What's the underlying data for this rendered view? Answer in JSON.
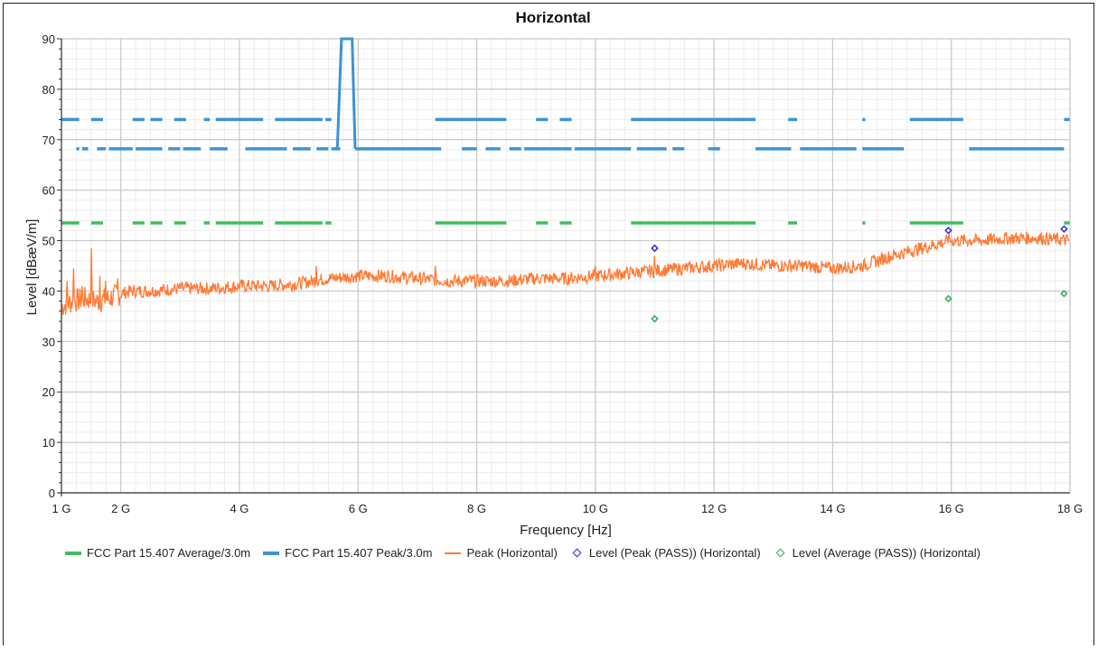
{
  "chart_data": {
    "type": "line",
    "title": "Horizontal",
    "xlabel": "Frequency [Hz]",
    "ylabel": "Level [dBæV/m]",
    "xlim": [
      1,
      18
    ],
    "ylim": [
      0,
      90
    ],
    "x_ticks": [
      {
        "v": 1,
        "label": "1 G"
      },
      {
        "v": 2,
        "label": "2 G"
      },
      {
        "v": 4,
        "label": "4 G"
      },
      {
        "v": 6,
        "label": "6 G"
      },
      {
        "v": 8,
        "label": "8 G"
      },
      {
        "v": 10,
        "label": "10 G"
      },
      {
        "v": 12,
        "label": "12 G"
      },
      {
        "v": 14,
        "label": "14 G"
      },
      {
        "v": 16,
        "label": "16 G"
      },
      {
        "v": 18,
        "label": "18 G"
      }
    ],
    "y_ticks": [
      0,
      10,
      20,
      30,
      40,
      50,
      60,
      70,
      80,
      90
    ],
    "grid": true,
    "legend_position": "bottom",
    "series": [
      {
        "name": "FCC Part 15.407 Average/3.0m",
        "style": "segments",
        "color": "#3dbf5a",
        "level": 53.5,
        "segments": [
          [
            1.0,
            1.3
          ],
          [
            1.5,
            1.7
          ],
          [
            2.2,
            2.4
          ],
          [
            2.5,
            2.7
          ],
          [
            2.9,
            3.1
          ],
          [
            3.4,
            3.5
          ],
          [
            3.6,
            4.4
          ],
          [
            4.6,
            5.4
          ],
          [
            5.45,
            5.55
          ],
          [
            7.3,
            8.0
          ],
          [
            8.0,
            8.5
          ],
          [
            9.0,
            9.2
          ],
          [
            9.4,
            9.6
          ],
          [
            10.6,
            12.7
          ],
          [
            13.25,
            13.4
          ],
          [
            14.5,
            14.55
          ],
          [
            15.3,
            16.2
          ],
          [
            17.9,
            18.0
          ]
        ]
      },
      {
        "name": "FCC Part 15.407 Peak/3.0m",
        "style": "segments",
        "color": "#3d92d4",
        "upper": {
          "level": 74,
          "segments": [
            [
              1.0,
              1.3
            ],
            [
              1.5,
              1.7
            ],
            [
              2.2,
              2.4
            ],
            [
              2.5,
              2.7
            ],
            [
              2.9,
              3.1
            ],
            [
              3.4,
              3.5
            ],
            [
              3.6,
              4.4
            ],
            [
              4.6,
              5.4
            ],
            [
              5.45,
              5.55
            ],
            [
              7.3,
              8.0
            ],
            [
              8.0,
              8.5
            ],
            [
              9.0,
              9.2
            ],
            [
              9.4,
              9.6
            ],
            [
              10.6,
              12.7
            ],
            [
              13.25,
              13.4
            ],
            [
              14.5,
              14.55
            ],
            [
              15.3,
              16.2
            ],
            [
              17.9,
              18.0
            ]
          ]
        },
        "lower": {
          "level": 68.2,
          "segments": [
            [
              1.25,
              1.3
            ],
            [
              1.35,
              1.45
            ],
            [
              1.6,
              1.75
            ],
            [
              1.8,
              2.2
            ],
            [
              2.25,
              2.7
            ],
            [
              2.8,
              3.0
            ],
            [
              3.05,
              3.35
            ],
            [
              3.5,
              3.8
            ],
            [
              4.1,
              4.8
            ],
            [
              4.9,
              5.2
            ],
            [
              5.3,
              5.5
            ],
            [
              5.55,
              5.7
            ],
            [
              5.95,
              7.4
            ],
            [
              7.75,
              8.0
            ],
            [
              8.15,
              8.4
            ],
            [
              8.55,
              8.75
            ],
            [
              8.8,
              9.6
            ],
            [
              9.65,
              10.6
            ],
            [
              10.7,
              11.2
            ],
            [
              11.3,
              11.5
            ],
            [
              11.9,
              12.1
            ],
            [
              12.7,
              13.3
            ],
            [
              13.45,
              14.4
            ],
            [
              14.5,
              15.2
            ],
            [
              16.3,
              17.9
            ]
          ]
        },
        "band_notch": [
          [
            5.65,
            68.2
          ],
          [
            5.72,
            90
          ],
          [
            5.9,
            90
          ],
          [
            5.95,
            68.2
          ]
        ]
      },
      {
        "name": "Peak (Horizontal)",
        "style": "line",
        "color": "#ff7a34",
        "x": [
          1.0,
          1.2,
          1.4,
          1.6,
          1.8,
          2.0,
          2.2,
          2.5,
          3.0,
          3.5,
          4.0,
          4.5,
          5.0,
          5.5,
          6.0,
          6.5,
          7.0,
          7.5,
          8.0,
          8.5,
          9.0,
          9.5,
          10.0,
          10.5,
          11.0,
          11.5,
          12.0,
          12.5,
          13.0,
          13.5,
          14.0,
          14.5,
          15.0,
          15.5,
          16.0,
          16.5,
          17.0,
          17.5,
          18.0
        ],
        "values": [
          37,
          38,
          38.5,
          38,
          38.5,
          39.5,
          40,
          40,
          40.5,
          40.5,
          41,
          41,
          41.5,
          42.5,
          43,
          43,
          42.5,
          42,
          42,
          42,
          42.5,
          42.5,
          43,
          43.5,
          44,
          44.5,
          45,
          45.5,
          45,
          45,
          44.5,
          45,
          47,
          48.5,
          50,
          50,
          50.5,
          50.5,
          50
        ],
        "spikes": [
          [
            1.1,
            42
          ],
          [
            1.2,
            44.5
          ],
          [
            1.35,
            41
          ],
          [
            1.5,
            48.5
          ],
          [
            1.65,
            43
          ],
          [
            1.75,
            42
          ],
          [
            1.95,
            42.5
          ],
          [
            5.3,
            45
          ],
          [
            7.3,
            45
          ],
          [
            10.0,
            45
          ],
          [
            11.0,
            47
          ],
          [
            15.95,
            51
          ]
        ]
      },
      {
        "name": "Level (Peak (PASS)) (Horizontal)",
        "style": "markers",
        "color": "#2b2bd4",
        "points": [
          [
            11.0,
            48.5
          ],
          [
            15.95,
            52
          ],
          [
            17.9,
            52.3
          ]
        ]
      },
      {
        "name": "Level (Average (PASS)) (Horizontal)",
        "style": "markers",
        "color": "#3aa84f",
        "points": [
          [
            11.0,
            34.5
          ],
          [
            15.95,
            38.5
          ],
          [
            17.9,
            39.5
          ]
        ]
      }
    ]
  }
}
